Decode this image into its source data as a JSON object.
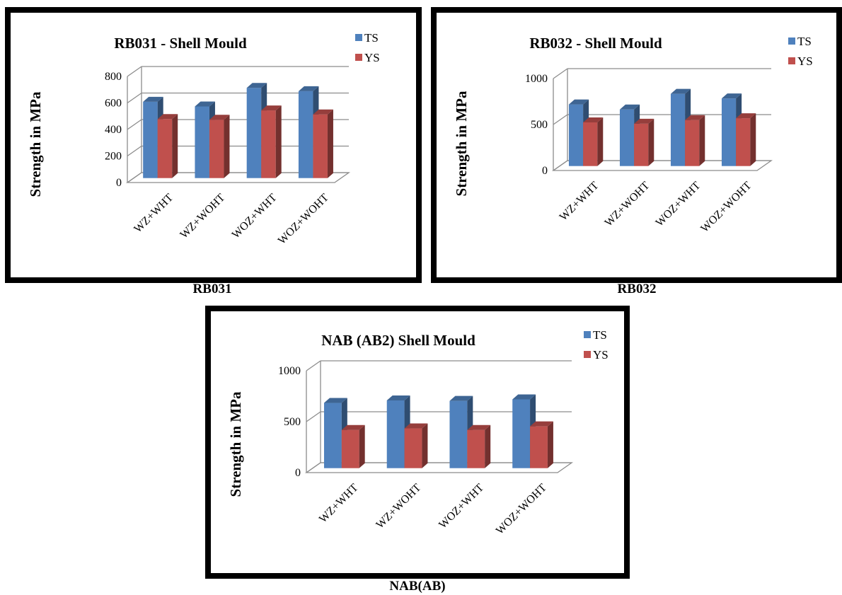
{
  "captions": [
    "RB031",
    "RB032",
    "NAB(AB)"
  ],
  "chart_data": [
    {
      "type": "bar",
      "title": "RB031 - Shell Mould",
      "ylabel": "Strength in MPa",
      "xlabel": "",
      "categories": [
        "WZ+WHT",
        "WZ+WOHT",
        "WOZ+WHT",
        "WOZ+WOHT"
      ],
      "series": [
        {
          "name": "TS",
          "values": [
            575,
            540,
            680,
            655
          ]
        },
        {
          "name": "YS",
          "values": [
            445,
            440,
            510,
            480
          ]
        }
      ],
      "ylim": [
        0,
        800
      ],
      "yticks": [
        0,
        200,
        400,
        600,
        800
      ],
      "colors": {
        "TS": "#4F81BD",
        "YS": "#C0504D"
      },
      "grid": true,
      "legend": "top-right",
      "three_d": true
    },
    {
      "type": "bar",
      "title": "RB032 - Shell Mould",
      "ylabel": "Strength in MPa",
      "xlabel": "",
      "categories": [
        "WZ+WHT",
        "WZ+WOHT",
        "WOZ+WHT",
        "WOZ+WOHT"
      ],
      "series": [
        {
          "name": "TS",
          "values": [
            670,
            615,
            785,
            735
          ]
        },
        {
          "name": "YS",
          "values": [
            475,
            460,
            500,
            520
          ]
        }
      ],
      "ylim": [
        0,
        1000
      ],
      "yticks": [
        0,
        500,
        1000
      ],
      "colors": {
        "TS": "#4F81BD",
        "YS": "#C0504D"
      },
      "grid": true,
      "legend": "top-right",
      "three_d": true
    },
    {
      "type": "bar",
      "title": "NAB (AB2) Shell Mould",
      "ylabel": "Strength in MPa",
      "xlabel": "",
      "categories": [
        "WZ+WHT",
        "WZ+WOHT",
        "WOZ+WHT",
        "WOZ+WOHT"
      ],
      "series": [
        {
          "name": "TS",
          "values": [
            640,
            665,
            660,
            675
          ]
        },
        {
          "name": "YS",
          "values": [
            375,
            390,
            375,
            410
          ]
        }
      ],
      "ylim": [
        0,
        1000
      ],
      "yticks": [
        0,
        500,
        1000
      ],
      "colors": {
        "TS": "#4F81BD",
        "YS": "#C0504D"
      },
      "grid": true,
      "legend": "top-right",
      "three_d": true
    }
  ]
}
